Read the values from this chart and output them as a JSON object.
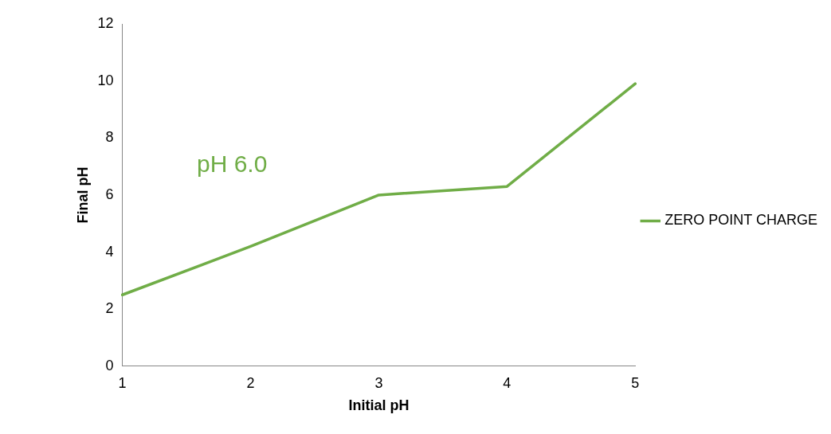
{
  "chart_data": {
    "type": "line",
    "xlabel": "Initial pH",
    "ylabel": "Final pH",
    "categories": [
      "1",
      "2",
      "3",
      "4",
      "5"
    ],
    "series": [
      {
        "name": "ZERO POINT CHARGE",
        "color": "#70ad47",
        "values": [
          2.5,
          4.2,
          6.0,
          6.3,
          9.9
        ]
      }
    ],
    "ylim": [
      0,
      12
    ],
    "yticks": [
      0,
      2,
      4,
      6,
      8,
      10,
      12
    ],
    "grid": false,
    "legend": "right",
    "marker": "none",
    "line_style": "solid",
    "annotations": [
      "pH 6.0"
    ]
  }
}
